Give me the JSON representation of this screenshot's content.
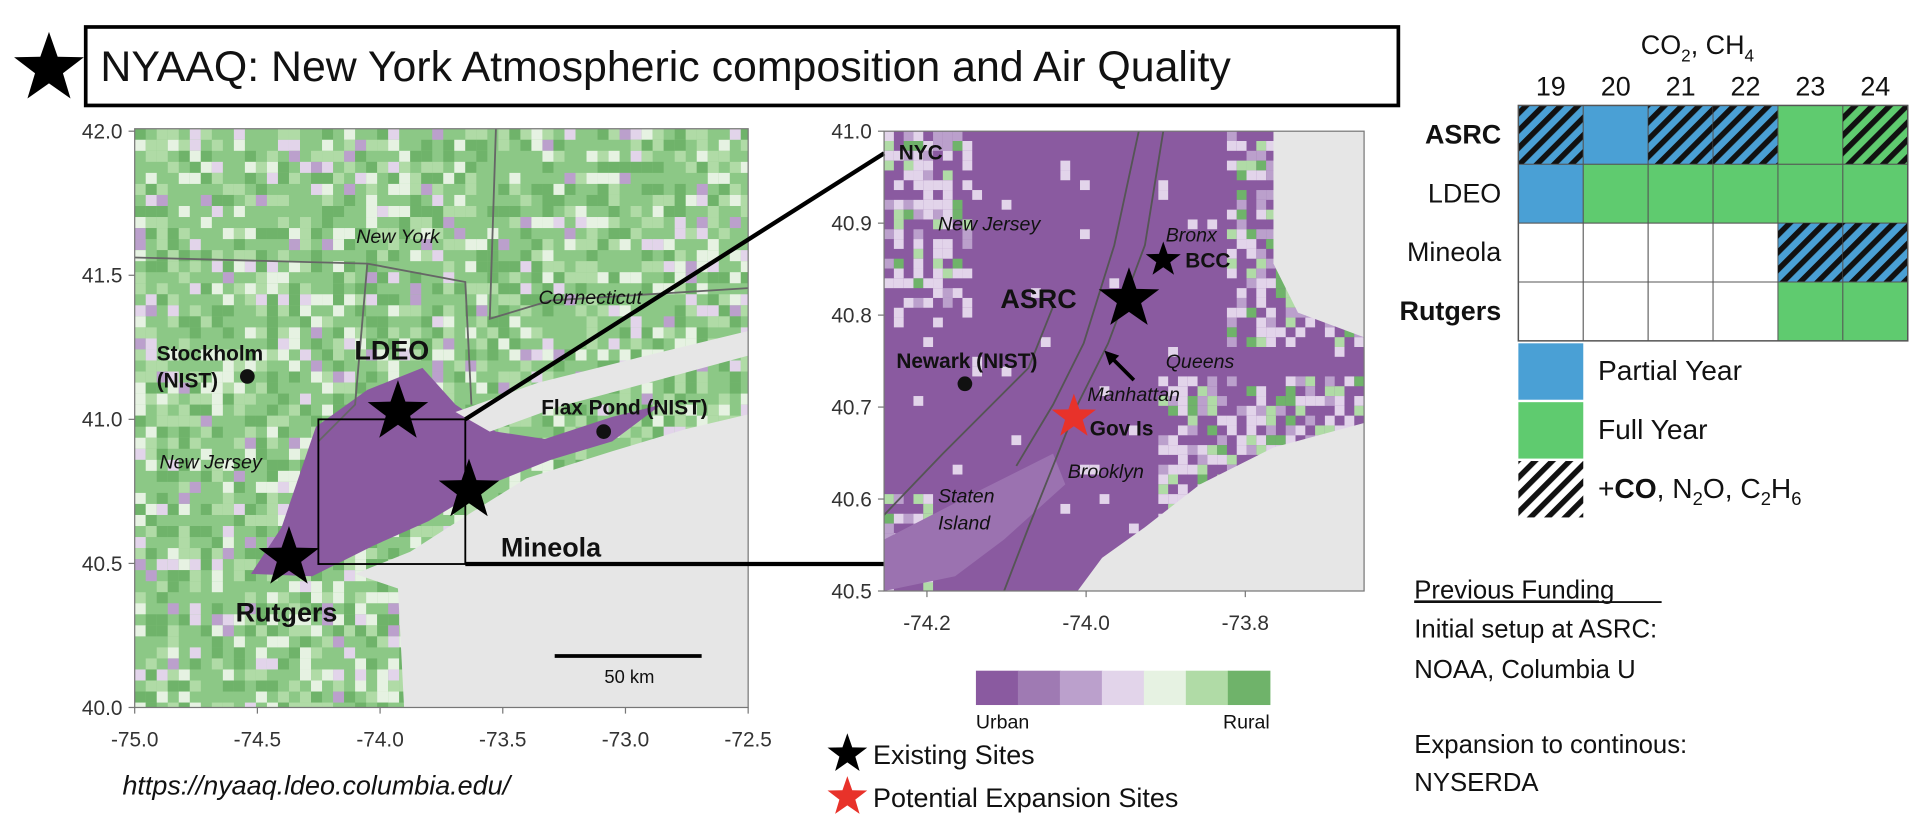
{
  "title": "NYAAQ: New York Atmospheric composition and Air Quality",
  "regional_map": {
    "yticks": [
      "42.0",
      "41.5",
      "41.0",
      "40.5",
      "40.0"
    ],
    "xticks": [
      "-75.0",
      "-74.5",
      "-74.0",
      "-73.5",
      "-73.0",
      "-72.5"
    ],
    "labels": {
      "new_york": "New York",
      "connecticut": "Connecticut",
      "new_jersey": "New Jersey",
      "stockholm": [
        "Stockholm",
        "(NIST)"
      ],
      "flax_pond": "Flax Pond (NIST)"
    },
    "sites": {
      "ldeo": "LDEO",
      "mineola": "Mineola",
      "rutgers": "Rutgers"
    },
    "scale_bar": "50 km"
  },
  "url": "https://nyaaq.ldeo.columbia.edu/",
  "city_map": {
    "yticks": [
      "41.0",
      "40.9",
      "40.8",
      "40.7",
      "40.6",
      "40.5"
    ],
    "xticks": [
      "-74.2",
      "-74.0",
      "-73.8"
    ],
    "labels": {
      "nyc": "NYC",
      "new_jersey": "New Jersey",
      "bronx": "Bronx",
      "queens": "Queens",
      "manhattan": "Manhattan",
      "brooklyn": "Brooklyn",
      "staten_island": [
        "Staten",
        "Island"
      ],
      "newark": "Newark (NIST)"
    },
    "sites": {
      "asrc": "ASRC",
      "bcc": "BCC",
      "gov_is": "Gov Is"
    }
  },
  "colorbar": {
    "colors": [
      "#8a5aa0",
      "#9f7ab3",
      "#bba0cc",
      "#e2d4ea",
      "#e6f2e2",
      "#b0dba6",
      "#6fb36a"
    ],
    "min_label": "Urban",
    "max_label": "Rural"
  },
  "site_legend": [
    {
      "label": "Existing Sites",
      "color": "#000000"
    },
    {
      "label": "Potential Expansion Sites",
      "color": "#e8322a"
    }
  ],
  "table": {
    "header": [
      "CO",
      "2",
      ", CH",
      "4"
    ],
    "years": [
      "19",
      "20",
      "21",
      "22",
      "23",
      "24"
    ],
    "rows": [
      {
        "site": "ASRC",
        "bold": true,
        "cells": [
          {
            "color": "#4aa0d5",
            "hatch": true
          },
          {
            "color": "#4aa0d5",
            "hatch": false
          },
          {
            "color": "#4aa0d5",
            "hatch": true
          },
          {
            "color": "#4aa0d5",
            "hatch": true
          },
          {
            "color": "#5fcb6f",
            "hatch": false
          },
          {
            "color": "#5fcb6f",
            "hatch": true
          }
        ]
      },
      {
        "site": "LDEO",
        "bold": false,
        "cells": [
          {
            "color": "#4aa0d5",
            "hatch": false
          },
          {
            "color": "#5fcb6f",
            "hatch": false
          },
          {
            "color": "#5fcb6f",
            "hatch": false
          },
          {
            "color": "#5fcb6f",
            "hatch": false
          },
          {
            "color": "#5fcb6f",
            "hatch": false
          },
          {
            "color": "#5fcb6f",
            "hatch": false
          }
        ]
      },
      {
        "site": "Mineola",
        "bold": false,
        "cells": [
          {
            "color": "#ffffff",
            "hatch": false
          },
          {
            "color": "#ffffff",
            "hatch": false
          },
          {
            "color": "#ffffff",
            "hatch": false
          },
          {
            "color": "#ffffff",
            "hatch": false
          },
          {
            "color": "#4aa0d5",
            "hatch": true
          },
          {
            "color": "#4aa0d5",
            "hatch": true
          }
        ]
      },
      {
        "site": "Rutgers",
        "bold": true,
        "cells": [
          {
            "color": "#ffffff",
            "hatch": false
          },
          {
            "color": "#ffffff",
            "hatch": false
          },
          {
            "color": "#ffffff",
            "hatch": false
          },
          {
            "color": "#ffffff",
            "hatch": false
          },
          {
            "color": "#5fcb6f",
            "hatch": false
          },
          {
            "color": "#5fcb6f",
            "hatch": false
          }
        ]
      }
    ]
  },
  "table_legend": [
    {
      "color": "#4aa0d5",
      "hatch": false,
      "label": [
        "Partial Year"
      ]
    },
    {
      "color": "#5fcb6f",
      "hatch": false,
      "label": [
        "Full Year"
      ]
    },
    {
      "color": "#ffffff",
      "hatch": true,
      "label": [
        "+",
        "CO",
        ", N",
        "2",
        "O, C",
        "2",
        "H",
        "6"
      ]
    }
  ],
  "funding": {
    "heading": "Previous Funding",
    "lines": [
      "Initial setup at ASRC:",
      "NOAA, Columbia U",
      "Expansion to continous:",
      "NYSERDA"
    ]
  }
}
